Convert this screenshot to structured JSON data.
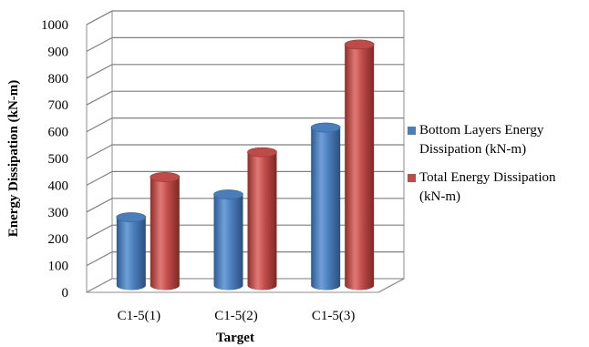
{
  "chart_data": {
    "type": "bar",
    "style": "3d-cylinder",
    "categories": [
      "C1-5(1)",
      "C1-5(2)",
      "C1-5(3)"
    ],
    "series": [
      {
        "name": "Bottom Layers Energy Dissipation (kN-m)",
        "legend_lines": [
          "Bottom Layers Energy",
          "Dissipation (kN-m)"
        ],
        "values": [
          255,
          340,
          590
        ],
        "color": "#4a7ebb"
      },
      {
        "name": "Total Energy Dissipation (kN-m)",
        "legend_lines": [
          "Total Energy Dissipation",
          "(kN-m)"
        ],
        "values": [
          405,
          498,
          900
        ],
        "color": "#be4b48"
      }
    ],
    "xlabel": "Target",
    "ylabel": "Energy Dissipation (kN-m)",
    "ylim": [
      0,
      1000
    ],
    "yticks": [
      0,
      100,
      200,
      300,
      400,
      500,
      600,
      700,
      800,
      900,
      1000
    ],
    "grid": true,
    "legend_position": "right"
  }
}
